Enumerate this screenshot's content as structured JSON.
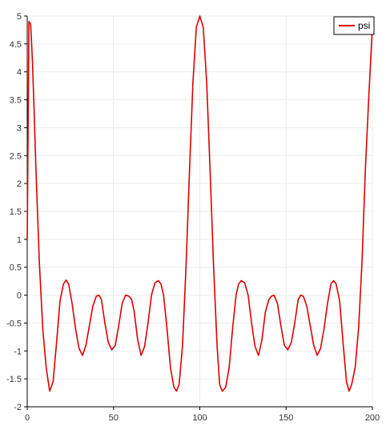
{
  "chart_data": {
    "type": "line",
    "title": "",
    "xlabel": "",
    "ylabel": "",
    "xlim": [
      0,
      200
    ],
    "ylim": [
      -2,
      5
    ],
    "xticks": [
      0,
      50,
      100,
      150,
      200
    ],
    "yticks": [
      -2,
      -1.5,
      -1,
      -0.5,
      0,
      0.5,
      1,
      1.5,
      2,
      2.5,
      3,
      3.5,
      4,
      4.5,
      5
    ],
    "grid": true,
    "legend": "top-right",
    "series": [
      {
        "name": "psi",
        "color": "#dd0000",
        "x": [
          0,
          1,
          2,
          3,
          4,
          5,
          7,
          9,
          11,
          13,
          15,
          17,
          19,
          21,
          22.5,
          24,
          26,
          28,
          30,
          32,
          34,
          36,
          38,
          40,
          41.5,
          43,
          45,
          47,
          49,
          51,
          53,
          55,
          57,
          59,
          60.5,
          62,
          64,
          66,
          68,
          70,
          72,
          74,
          76,
          77.5,
          79,
          81,
          83,
          85,
          86.5,
          88,
          90,
          92,
          94,
          96,
          98,
          100,
          102,
          104,
          106,
          108,
          110,
          111.5,
          113,
          115,
          117,
          119,
          121,
          122.5,
          124,
          126,
          128,
          130,
          132,
          134,
          136,
          138,
          140,
          141.5,
          143,
          145,
          147,
          149,
          151,
          153,
          155,
          157,
          158.5,
          160,
          162,
          164,
          166,
          168,
          170,
          172,
          174,
          176,
          177.5,
          179,
          181,
          183,
          185,
          186.5,
          188,
          190,
          192,
          194,
          196,
          198,
          200
        ],
        "y": [
          1.0,
          4.9,
          4.85,
          4.2,
          3.3,
          2.3,
          0.6,
          -0.6,
          -1.3,
          -1.72,
          -1.55,
          -0.85,
          -0.1,
          0.2,
          0.27,
          0.2,
          -0.15,
          -0.6,
          -0.95,
          -1.08,
          -0.9,
          -0.55,
          -0.2,
          -0.02,
          0.0,
          -0.08,
          -0.5,
          -0.85,
          -0.98,
          -0.9,
          -0.55,
          -0.15,
          0.0,
          -0.02,
          -0.08,
          -0.3,
          -0.8,
          -1.08,
          -0.92,
          -0.5,
          0.0,
          0.22,
          0.26,
          0.2,
          0.0,
          -0.6,
          -1.3,
          -1.65,
          -1.72,
          -1.6,
          -0.9,
          0.5,
          2.2,
          3.8,
          4.8,
          5.0,
          4.8,
          3.8,
          2.2,
          0.5,
          -0.9,
          -1.6,
          -1.72,
          -1.65,
          -1.3,
          -0.6,
          0.0,
          0.2,
          0.26,
          0.22,
          0.0,
          -0.5,
          -0.92,
          -1.08,
          -0.8,
          -0.3,
          -0.08,
          -0.02,
          0.0,
          -0.15,
          -0.55,
          -0.9,
          -0.98,
          -0.85,
          -0.5,
          -0.08,
          0.0,
          -0.02,
          -0.2,
          -0.55,
          -0.9,
          -1.08,
          -0.95,
          -0.6,
          -0.15,
          0.2,
          0.26,
          0.2,
          -0.1,
          -0.85,
          -1.55,
          -1.72,
          -1.6,
          -1.3,
          -0.6,
          0.6,
          2.3,
          3.6,
          4.8
        ]
      }
    ]
  }
}
